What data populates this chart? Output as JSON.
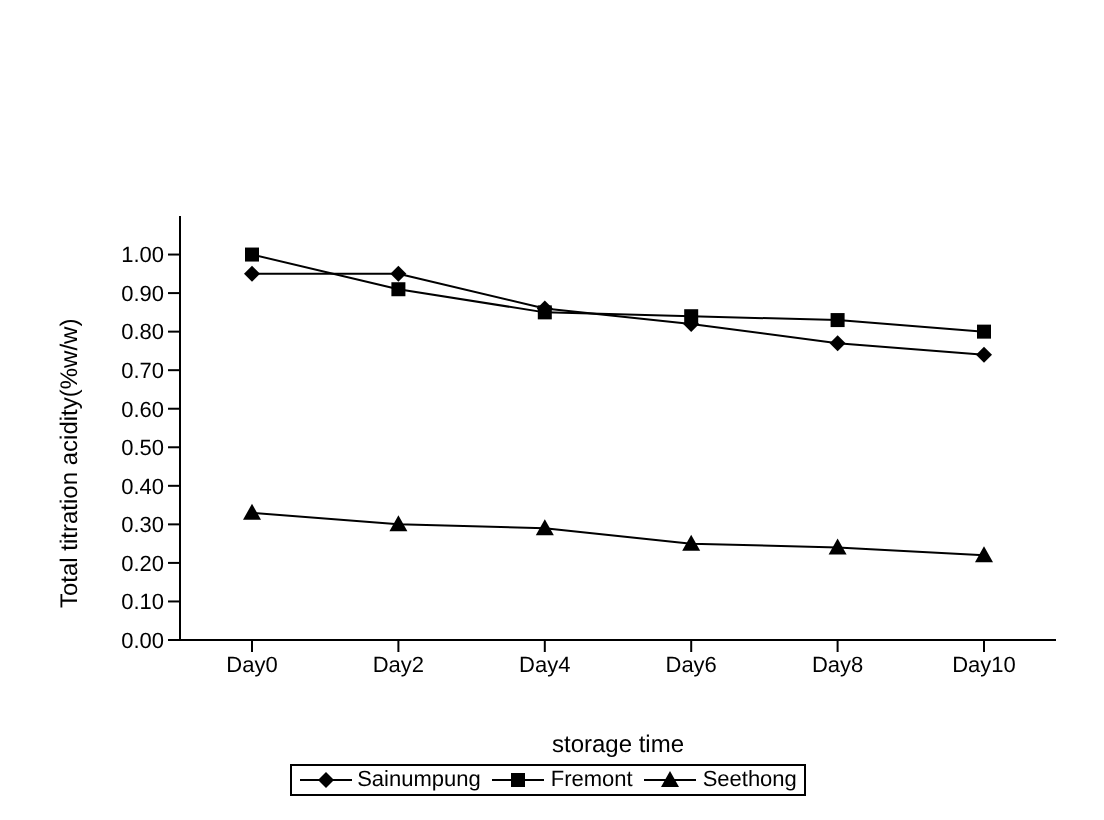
{
  "chart_data": {
    "type": "line",
    "xlabel": "storage time",
    "ylabel": "Total titration acidity(%w/w)",
    "categories": [
      "Day0",
      "Day2",
      "Day4",
      "Day6",
      "Day8",
      "Day10"
    ],
    "series": [
      {
        "name": "Sainumpung",
        "color": "#000000",
        "marker": "diamond",
        "values": [
          0.95,
          0.95,
          0.86,
          0.82,
          0.77,
          0.74
        ]
      },
      {
        "name": "Fremont",
        "color": "#000000",
        "marker": "square",
        "values": [
          1.0,
          0.91,
          0.85,
          0.84,
          0.83,
          0.8
        ]
      },
      {
        "name": "Seethong",
        "color": "#000000",
        "marker": "triangle",
        "values": [
          0.33,
          0.3,
          0.29,
          0.25,
          0.24,
          0.22
        ]
      }
    ],
    "ylim": [
      0,
      1.1
    ],
    "yticks": [
      {
        "value": 0,
        "label": "0.00"
      },
      {
        "value": 0.1,
        "label": "0.10"
      },
      {
        "value": 0.2,
        "label": "0.20"
      },
      {
        "value": 0.3,
        "label": "0.30"
      },
      {
        "value": 0.4,
        "label": "0.40"
      },
      {
        "value": 0.5,
        "label": "0.50"
      },
      {
        "value": 0.6,
        "label": "0.60"
      },
      {
        "value": 0.7,
        "label": "0.70"
      },
      {
        "value": 0.8,
        "label": "0.80"
      },
      {
        "value": 0.9,
        "label": "0.90"
      },
      {
        "value": 1.0,
        "label": "1.00"
      }
    ],
    "grid": false,
    "legend": "bottom"
  }
}
